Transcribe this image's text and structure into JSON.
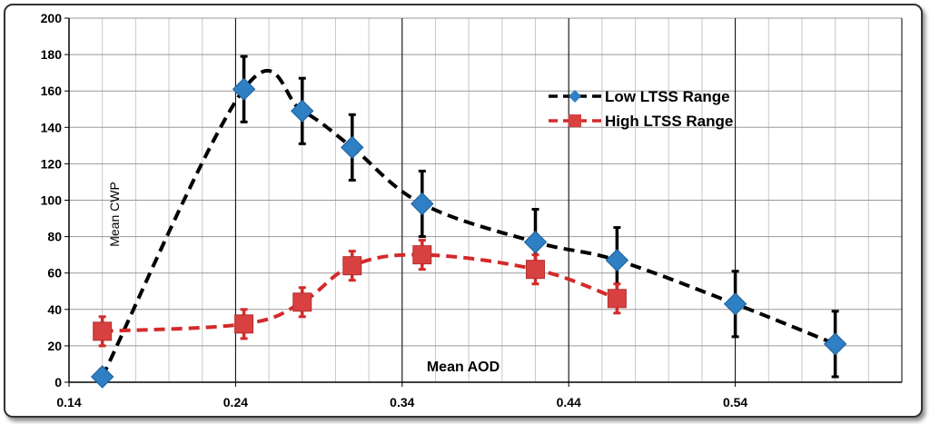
{
  "chart_data": {
    "type": "line",
    "xlabel": "Mean AOD",
    "ylabel": "Mean CWP",
    "xlim": [
      0.14,
      0.64
    ],
    "ylim": [
      0,
      200
    ],
    "x_ticks": [
      0.14,
      0.24,
      0.34,
      0.44,
      0.54
    ],
    "x_tick_labels": [
      "0.14",
      "0.24",
      "0.34",
      "0.44",
      "0.54"
    ],
    "y_ticks": [
      0,
      20,
      40,
      60,
      80,
      100,
      120,
      140,
      160,
      180,
      200
    ],
    "y_tick_labels": [
      "0",
      "20",
      "40",
      "60",
      "80",
      "100",
      "120",
      "140",
      "160",
      "180",
      "200"
    ],
    "grid": true,
    "legend_position": "top-right",
    "series": [
      {
        "name": "Low LTSS Range",
        "color": "#2e7fc4",
        "line_color": "#000000",
        "marker": "diamond",
        "x": [
          0.16,
          0.245,
          0.28,
          0.31,
          0.352,
          0.42,
          0.469,
          0.54,
          0.6
        ],
        "y": [
          3,
          161,
          149,
          129,
          98,
          77,
          67,
          43,
          21
        ],
        "err": [
          4,
          18,
          18,
          18,
          18,
          18,
          18,
          18,
          18
        ]
      },
      {
        "name": "High LTSS Range",
        "color": "#d94040",
        "line_color": "#d42a2a",
        "marker": "square",
        "x": [
          0.16,
          0.245,
          0.28,
          0.31,
          0.352,
          0.42,
          0.469
        ],
        "y": [
          28,
          32,
          44,
          64,
          70,
          62,
          46
        ],
        "err": [
          8,
          8,
          8,
          8,
          8,
          8,
          8
        ]
      }
    ]
  }
}
